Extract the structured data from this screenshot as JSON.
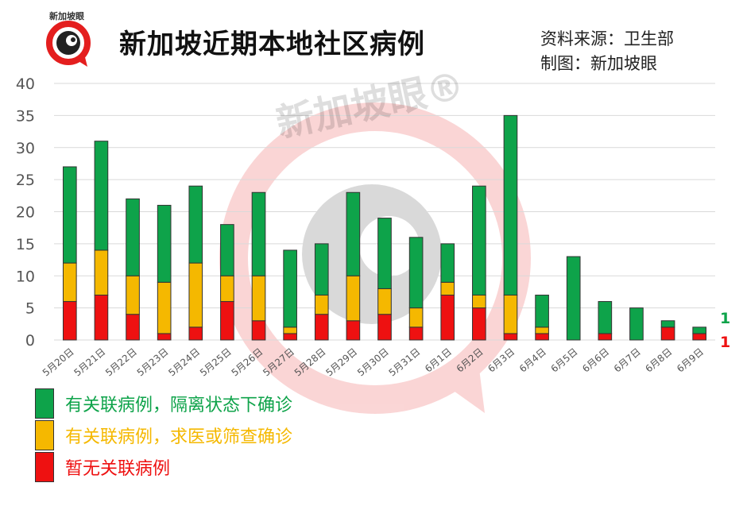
{
  "header": {
    "logo_text": "新加坡眼",
    "title": "新加坡近期本地社区病例",
    "source_line1": "资料来源：卫生部",
    "source_line2": "制图：新加坡眼"
  },
  "watermark": {
    "text": "新加坡眼®"
  },
  "colors": {
    "linked_quarantined": "#0ea34a",
    "linked_detected": "#f5b800",
    "unlinked": "#ee1111",
    "axis_text": "#555555",
    "grid": "#d9d9d9"
  },
  "chart_data": {
    "type": "bar",
    "stacked": true,
    "categories": [
      "5月20日",
      "5月21日",
      "5月22日",
      "5月23日",
      "5月24日",
      "5月25日",
      "5月26日",
      "5月27日",
      "5月28日",
      "5月29日",
      "5月30日",
      "5月31日",
      "6月1日",
      "6月2日",
      "6月3日",
      "6月4日",
      "6月5日",
      "6月6日",
      "6月7日",
      "6月8日",
      "6月9日"
    ],
    "series": [
      {
        "key": "unlinked",
        "name": "暂无关联病例",
        "values": [
          6,
          7,
          4,
          1,
          2,
          6,
          3,
          1,
          4,
          3,
          4,
          2,
          7,
          5,
          1,
          1,
          0,
          1,
          0,
          2,
          1
        ]
      },
      {
        "key": "linked_detected",
        "name": "有关联病例，求医或筛查确诊",
        "values": [
          6,
          7,
          6,
          8,
          10,
          4,
          7,
          1,
          3,
          7,
          4,
          3,
          2,
          2,
          6,
          1,
          0,
          0,
          0,
          0,
          0
        ]
      },
      {
        "key": "linked_quarantined",
        "name": "有关联病例，隔离状态下确诊",
        "values": [
          15,
          17,
          12,
          12,
          12,
          8,
          13,
          12,
          8,
          13,
          11,
          11,
          6,
          17,
          28,
          5,
          13,
          5,
          5,
          1,
          1
        ]
      }
    ],
    "ylim": [
      0,
      40
    ],
    "yticks": [
      0,
      5,
      10,
      15,
      20,
      25,
      30,
      35,
      40
    ],
    "grid": true,
    "legend_position": "bottom-left",
    "side_annotations": [
      {
        "text": "1",
        "color": "#0ea34a"
      },
      {
        "text": "1",
        "color": "#ee1111"
      }
    ]
  }
}
